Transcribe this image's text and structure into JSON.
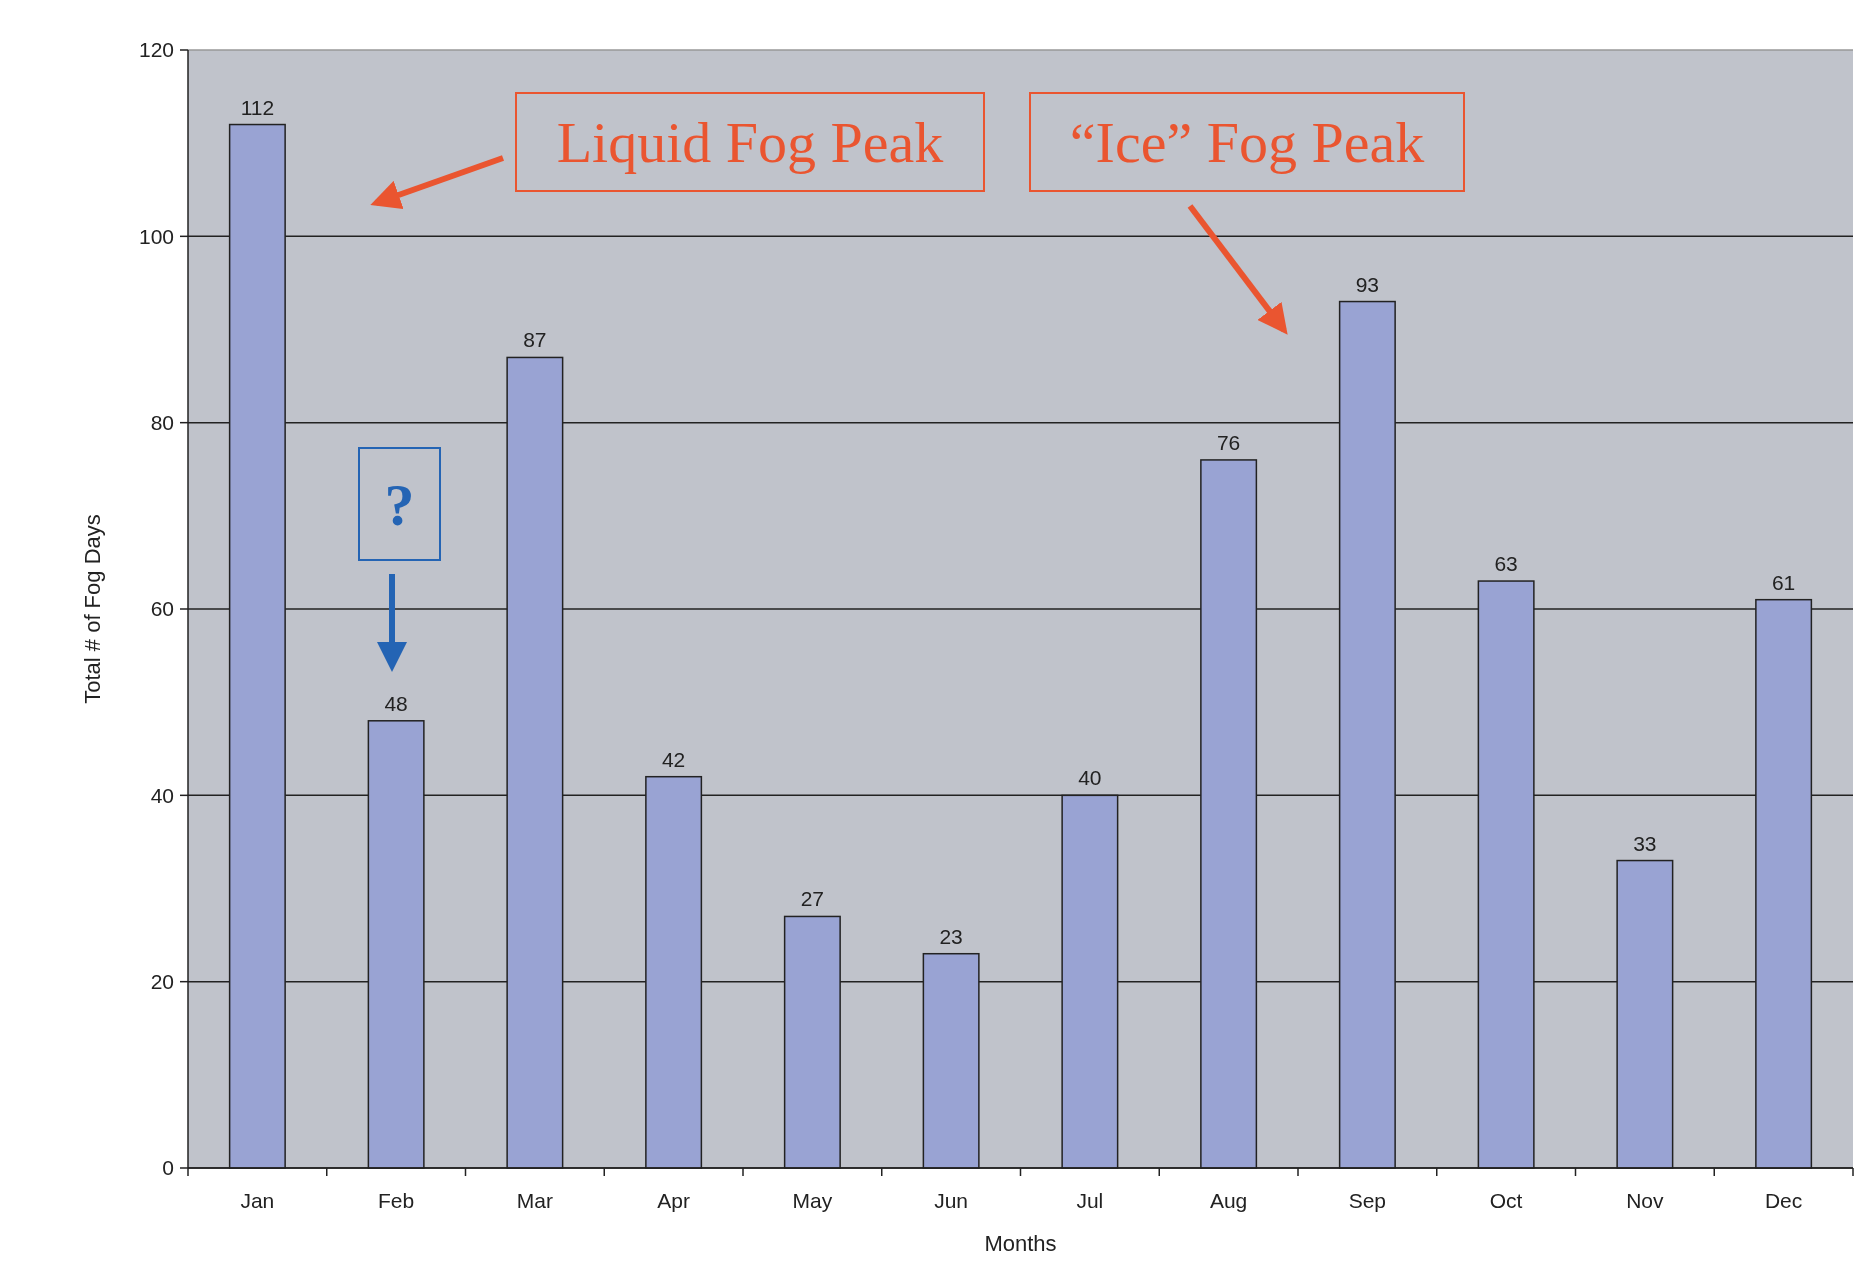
{
  "chart_data": {
    "type": "bar",
    "xlabel": "Months",
    "ylabel": "Total # of Fog Days",
    "categories": [
      "Jan",
      "Feb",
      "Mar",
      "Apr",
      "May",
      "Jun",
      "Jul",
      "Aug",
      "Sep",
      "Oct",
      "Nov",
      "Dec"
    ],
    "values": [
      112,
      48,
      87,
      42,
      27,
      23,
      40,
      76,
      93,
      63,
      33,
      61
    ],
    "color": "#99a3d3",
    "ylim": [
      0,
      120
    ],
    "yticks": [
      0,
      20,
      40,
      60,
      80,
      100,
      120
    ],
    "grid": "y",
    "data_labels": true,
    "annotations": [
      "Liquid Fog Peak",
      "“Ice” Fog Peak",
      "?"
    ]
  }
}
